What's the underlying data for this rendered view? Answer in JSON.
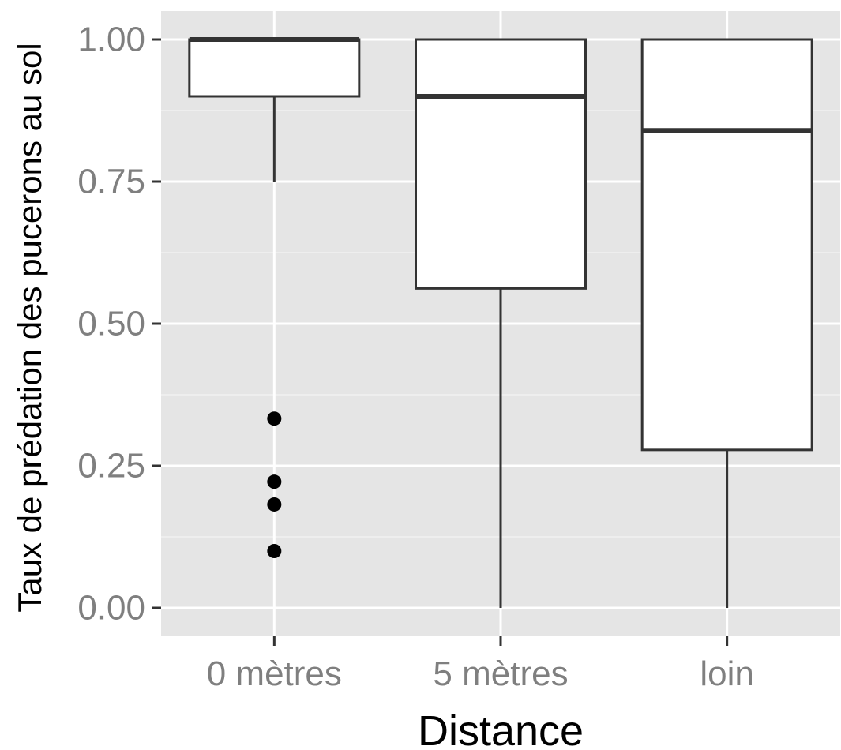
{
  "chart_data": {
    "type": "boxplot",
    "xlabel": "Distance",
    "ylabel": "Taux de prédation des pucerons au sol",
    "categories": [
      "0 mètres",
      "5 mètres",
      "loin"
    ],
    "ylim": [
      -0.05,
      1.05
    ],
    "y_ticks": [
      0.0,
      0.25,
      0.5,
      0.75,
      1.0
    ],
    "y_tick_labels": [
      "0.00",
      "0.25",
      "0.50",
      "0.75",
      "1.00"
    ],
    "grid": true,
    "legend": "none",
    "boxes": [
      {
        "category": "0 mètres",
        "whisker_low": 0.75,
        "q1": 0.9,
        "median": 1.0,
        "q3": 1.0,
        "whisker_high": 1.0,
        "outliers": [
          0.333,
          0.222,
          0.182,
          0.1
        ]
      },
      {
        "category": "5 mètres",
        "whisker_low": 0.0,
        "q1": 0.562,
        "median": 0.9,
        "q3": 1.0,
        "whisker_high": 1.0,
        "outliers": []
      },
      {
        "category": "loin",
        "whisker_low": 0.0,
        "q1": 0.278,
        "median": 0.84,
        "q3": 1.0,
        "whisker_high": 1.0,
        "outliers": []
      }
    ],
    "colors": {
      "panel_background": "#e5e5e5",
      "grid_major": "#ffffff",
      "grid_minor": "#f2f2f2",
      "box_fill": "#ffffff",
      "box_stroke": "#333333",
      "outlier": "#000000",
      "tick_text": "#7f7f7f",
      "axis_title": "#000000"
    }
  }
}
